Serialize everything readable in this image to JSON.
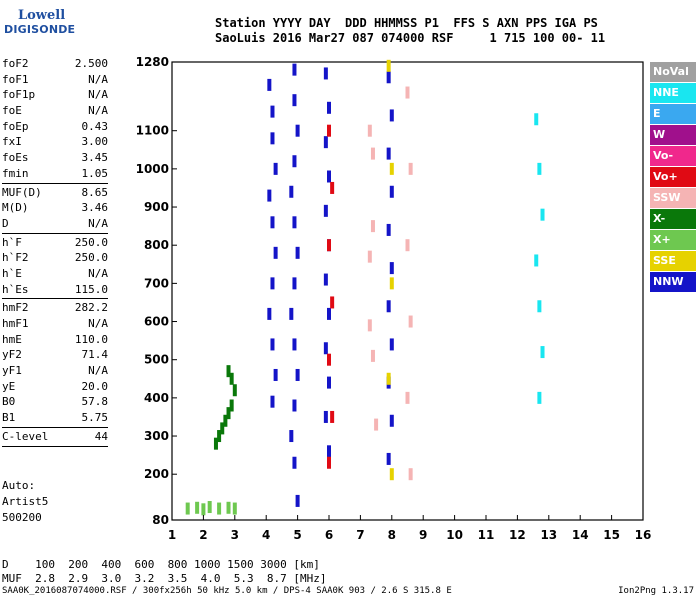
{
  "logo": {
    "line1": "Lowell",
    "line2": "DIGISONDE"
  },
  "header": {
    "row1": "Station YYYY DAY  DDD HHMMSS P1  FFS S AXN PPS IGA PS",
    "row2": "SaoLuis 2016 Mar27 087 074000 RSF     1 715 100 00- 11"
  },
  "params": {
    "group1": [
      {
        "label": "foF2",
        "value": "2.500"
      },
      {
        "label": "foF1",
        "value": "N/A"
      },
      {
        "label": "foF1p",
        "value": "N/A"
      },
      {
        "label": "foE",
        "value": "N/A"
      },
      {
        "label": "foEp",
        "value": "0.43"
      },
      {
        "label": "fxI",
        "value": "3.00"
      },
      {
        "label": "foEs",
        "value": "3.45"
      },
      {
        "label": "fmin",
        "value": "1.05"
      }
    ],
    "group2": [
      {
        "label": "MUF(D)",
        "value": "8.65"
      },
      {
        "label": "M(D)",
        "value": "3.46"
      },
      {
        "label": "D",
        "value": "N/A"
      }
    ],
    "group3": [
      {
        "label": "h`F",
        "value": "250.0"
      },
      {
        "label": "h`F2",
        "value": "250.0"
      },
      {
        "label": "h`E",
        "value": "N/A"
      },
      {
        "label": "h`Es",
        "value": "115.0"
      }
    ],
    "group4": [
      {
        "label": "hmF2",
        "value": "282.2"
      },
      {
        "label": "hmF1",
        "value": "N/A"
      },
      {
        "label": "hmE",
        "value": "110.0"
      },
      {
        "label": "yF2",
        "value": "71.4"
      },
      {
        "label": "yF1",
        "value": "N/A"
      },
      {
        "label": "yE",
        "value": "20.0"
      },
      {
        "label": "B0",
        "value": "57.8"
      },
      {
        "label": "B1",
        "value": "5.75"
      }
    ],
    "group5": [
      {
        "label": "C-level",
        "value": "44"
      }
    ],
    "auto": [
      "Auto:",
      "Artist5",
      "500200"
    ]
  },
  "legend": [
    {
      "label": "NoVal",
      "color": "#a0a0a0"
    },
    {
      "label": "NNE",
      "color": "#19e6f0"
    },
    {
      "label": "E",
      "color": "#3aa8f0"
    },
    {
      "label": "W",
      "color": "#a0108c"
    },
    {
      "label": "Vo-",
      "color": "#f0288c"
    },
    {
      "label": "Vo+",
      "color": "#e00a14"
    },
    {
      "label": "SSW",
      "color": "#f5b4b4"
    },
    {
      "label": "X-",
      "color": "#0a780a"
    },
    {
      "label": "X+",
      "color": "#6ec850"
    },
    {
      "label": "SSE",
      "color": "#e6d200"
    },
    {
      "label": "NNW",
      "color": "#1414c8"
    }
  ],
  "dmuf": {
    "row1": "D    100  200  400  600  800 1000 1500 3000 [km]",
    "row2": "MUF  2.8  2.9  3.0  3.2  3.5  4.0  5.3  8.7 [MHz]"
  },
  "footer": {
    "left": "SAA0K_2016087074000.RSF / 300fx256h 50 kHz 5.0 km / DPS-4 SAA0K 903 / 2.6 S 315.8 E",
    "right": "Ion2Png 1.3.17"
  },
  "chart_data": {
    "type": "scatter",
    "x_ticks": [
      1,
      2,
      3,
      4,
      5,
      6,
      7,
      8,
      9,
      10,
      11,
      12,
      13,
      14,
      15,
      16
    ],
    "y_ticks": [
      80,
      200,
      300,
      400,
      500,
      600,
      700,
      800,
      900,
      1000,
      1100,
      1280
    ],
    "xlim": [
      1,
      16
    ],
    "ylim": [
      80,
      1280
    ],
    "grid": false,
    "legend_position": "right",
    "traces": [
      {
        "color": "#1414c8",
        "x": [
          4.1,
          4.2,
          4.2,
          4.3,
          4.1,
          4.2,
          4.3,
          4.2,
          4.1,
          4.2,
          4.3,
          4.2
        ],
        "y": [
          1220,
          1150,
          1080,
          1000,
          930,
          860,
          780,
          700,
          620,
          540,
          460,
          390
        ]
      },
      {
        "color": "#1414c8",
        "x": [
          4.9,
          4.9,
          5.0,
          4.9,
          4.8,
          4.9,
          5.0,
          4.9,
          4.8,
          4.9,
          5.0,
          4.9,
          4.8,
          4.9,
          5.0
        ],
        "y": [
          1260,
          1180,
          1100,
          1020,
          940,
          860,
          780,
          700,
          620,
          540,
          460,
          380,
          300,
          230,
          130
        ]
      },
      {
        "color": "#1414c8",
        "x": [
          5.9,
          6.0,
          5.9,
          6.0,
          5.9,
          6.0,
          5.9,
          6.0,
          5.9,
          6.0,
          5.9,
          6.0
        ],
        "y": [
          1250,
          1160,
          1070,
          980,
          890,
          800,
          710,
          620,
          530,
          440,
          350,
          260
        ]
      },
      {
        "color": "#1414c8",
        "x": [
          7.9,
          8.0,
          7.9,
          8.0,
          7.9,
          8.0,
          7.9,
          8.0,
          7.9,
          8.0,
          7.9
        ],
        "y": [
          1240,
          1140,
          1040,
          940,
          840,
          740,
          640,
          540,
          440,
          340,
          240
        ]
      },
      {
        "color": "#e00a14",
        "x": [
          6.0,
          6.1,
          6.0,
          6.1,
          6.0,
          6.1,
          6.0
        ],
        "y": [
          1100,
          950,
          800,
          650,
          500,
          350,
          230
        ]
      },
      {
        "color": "#f5b4b4",
        "x": [
          7.3,
          7.4,
          7.3,
          7.5,
          7.4,
          7.3,
          7.4,
          8.5,
          8.6,
          8.5,
          8.6,
          8.5,
          8.6
        ],
        "y": [
          1100,
          850,
          590,
          330,
          1040,
          770,
          510,
          1200,
          1000,
          800,
          600,
          400,
          200
        ]
      },
      {
        "color": "#e6d200",
        "x": [
          7.9,
          8.0,
          8.0,
          7.9,
          8.0
        ],
        "y": [
          1270,
          1000,
          700,
          450,
          200
        ]
      },
      {
        "color": "#0a780a",
        "x": [
          2.4,
          2.5,
          2.6,
          2.7,
          2.8,
          2.9,
          3.0,
          2.9,
          2.8
        ],
        "y": [
          280,
          300,
          320,
          340,
          360,
          380,
          420,
          450,
          470
        ]
      },
      {
        "color": "#19e6f0",
        "x": [
          12.6,
          12.7,
          12.8,
          12.6,
          12.7,
          12.8,
          12.7
        ],
        "y": [
          1130,
          1000,
          880,
          760,
          640,
          520,
          400
        ]
      },
      {
        "color": "#6ec850",
        "x": [
          1.5,
          1.8,
          2.0,
          2.2,
          2.5,
          2.8,
          3.0
        ],
        "y": [
          110,
          112,
          108,
          114,
          110,
          112,
          110
        ]
      }
    ]
  }
}
